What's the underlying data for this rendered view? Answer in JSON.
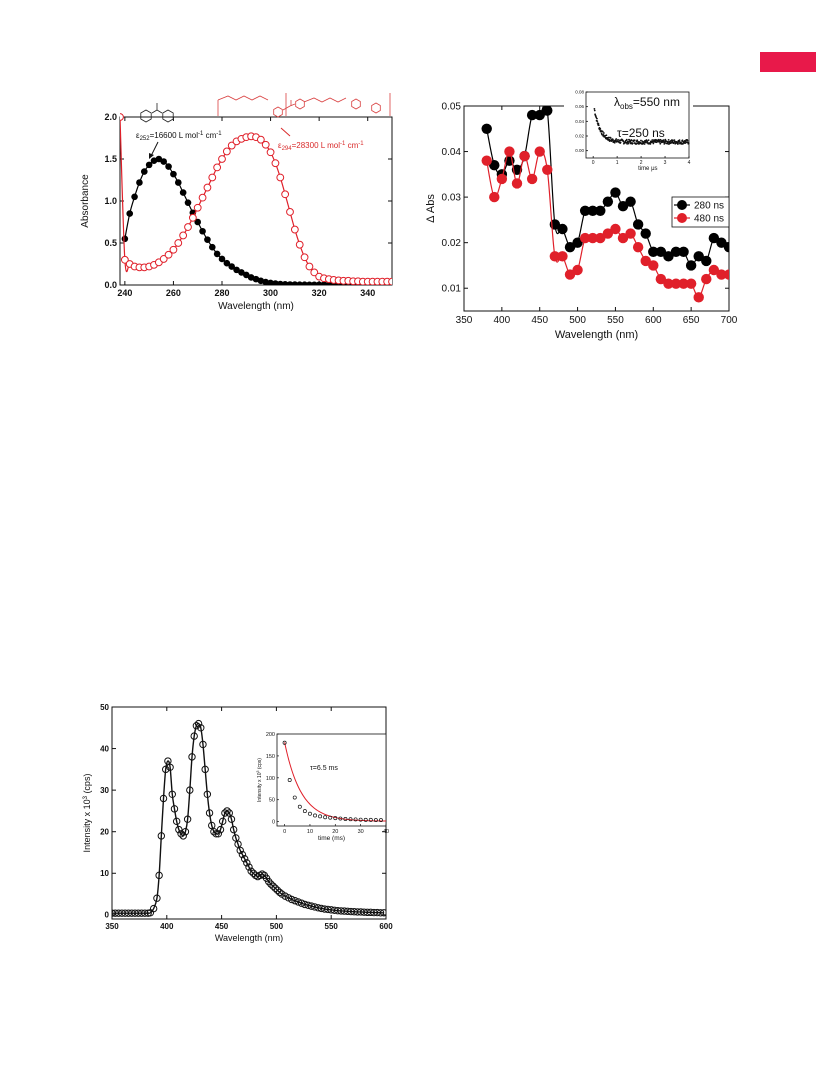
{
  "page": {
    "accent_color": "#e8194a"
  },
  "chart_data": [
    {
      "id": "abs",
      "type": "line",
      "xlabel": "Wavelength (nm)",
      "ylabel": "Absorbance",
      "xlim": [
        238,
        350
      ],
      "ylim": [
        0,
        2.0
      ],
      "xticks": [
        240,
        260,
        280,
        300,
        320,
        340
      ],
      "yticks": [
        0.0,
        0.5,
        1.0,
        1.5,
        2.0
      ],
      "xtick_labels": [
        "240",
        "260",
        "280",
        "300",
        "320",
        "340"
      ],
      "ytick_labels": [
        "0.0",
        "0.5",
        "1.0",
        "1.5",
        "2.0"
      ],
      "annotation_black": {
        "prefix": "ε",
        "sub": "252",
        "main": "=16600 L mol",
        "sup": "-1",
        "after": " cm",
        "sup2": "-1"
      },
      "annotation_red": {
        "prefix": "ε",
        "sub": "294",
        "main": "=28300 L mol",
        "sup": "-1",
        "after": " cm",
        "sup2": "-1"
      },
      "series": [
        {
          "color": "#000000",
          "marker": "filled",
          "x": [
            240,
            242,
            244,
            246,
            248,
            250,
            252,
            254,
            256,
            258,
            260,
            262,
            264,
            266,
            268,
            270,
            272,
            274,
            276,
            278,
            280,
            282,
            284,
            286,
            288,
            290,
            292,
            294,
            296,
            298,
            300,
            302,
            304,
            306,
            308,
            310,
            312,
            314,
            316,
            318,
            320,
            322,
            324,
            326,
            328,
            330,
            332,
            334,
            336,
            338,
            340,
            342,
            344,
            346,
            348,
            350
          ],
          "y": [
            0.55,
            0.85,
            1.05,
            1.22,
            1.35,
            1.43,
            1.48,
            1.5,
            1.47,
            1.41,
            1.32,
            1.22,
            1.1,
            0.98,
            0.86,
            0.75,
            0.64,
            0.54,
            0.45,
            0.37,
            0.31,
            0.26,
            0.22,
            0.18,
            0.15,
            0.12,
            0.09,
            0.07,
            0.05,
            0.035,
            0.025,
            0.018,
            0.012,
            0.008,
            0.006,
            0.005,
            0.004,
            0.004,
            0.003,
            0.003,
            0.003,
            0.003,
            0.003,
            0.003,
            0.003,
            0.003,
            0.003,
            0.003,
            0.003,
            0.003,
            0.003,
            0.003,
            0.003,
            0.003,
            0.003,
            0.003
          ]
        },
        {
          "color": "#e0202a",
          "marker": "open",
          "x": [
            238,
            240,
            242,
            244,
            246,
            248,
            250,
            252,
            254,
            256,
            258,
            260,
            262,
            264,
            266,
            268,
            270,
            272,
            274,
            276,
            278,
            280,
            282,
            284,
            286,
            288,
            290,
            292,
            294,
            296,
            298,
            300,
            302,
            304,
            306,
            308,
            310,
            312,
            314,
            316,
            318,
            320,
            322,
            324,
            326,
            328,
            330,
            332,
            334,
            336,
            338,
            340,
            342,
            344,
            346,
            348,
            350
          ],
          "y": [
            2.0,
            0.3,
            0.25,
            0.22,
            0.21,
            0.21,
            0.22,
            0.24,
            0.27,
            0.31,
            0.36,
            0.42,
            0.5,
            0.59,
            0.69,
            0.8,
            0.92,
            1.04,
            1.16,
            1.28,
            1.4,
            1.5,
            1.59,
            1.66,
            1.71,
            1.74,
            1.76,
            1.77,
            1.76,
            1.73,
            1.67,
            1.58,
            1.45,
            1.28,
            1.08,
            0.87,
            0.66,
            0.48,
            0.33,
            0.22,
            0.15,
            0.1,
            0.08,
            0.07,
            0.06,
            0.055,
            0.05,
            0.05,
            0.045,
            0.045,
            0.04,
            0.04,
            0.04,
            0.04,
            0.04,
            0.04,
            0.04
          ]
        }
      ]
    },
    {
      "id": "ta",
      "type": "line",
      "xlabel": "Wavelength (nm)",
      "ylabel": "Δ Abs",
      "xlim": [
        350,
        700
      ],
      "ylim": [
        0.005,
        0.05
      ],
      "xticks": [
        350,
        400,
        450,
        500,
        550,
        600,
        650,
        700
      ],
      "yticks": [
        0.01,
        0.02,
        0.03,
        0.04,
        0.05
      ],
      "xtick_labels": [
        "350",
        "400",
        "450",
        "500",
        "550",
        "600",
        "650",
        "700"
      ],
      "ytick_labels": [
        "0.01",
        "0.02",
        "0.03",
        "0.04",
        "0.05"
      ],
      "legend_position": "right",
      "series": [
        {
          "name": "280 ns",
          "color": "#000000",
          "x": [
            380,
            390,
            400,
            410,
            420,
            430,
            440,
            450,
            460,
            470,
            480,
            490,
            500,
            510,
            520,
            530,
            540,
            550,
            560,
            570,
            580,
            590,
            600,
            610,
            620,
            630,
            640,
            650,
            660,
            670,
            680,
            690,
            700
          ],
          "y": [
            0.045,
            0.037,
            0.035,
            0.038,
            0.036,
            0.039,
            0.048,
            0.048,
            0.049,
            0.024,
            0.023,
            0.019,
            0.02,
            0.027,
            0.027,
            0.027,
            0.029,
            0.031,
            0.028,
            0.029,
            0.024,
            0.022,
            0.018,
            0.018,
            0.017,
            0.018,
            0.018,
            0.015,
            0.017,
            0.016,
            0.021,
            0.02,
            0.019
          ]
        },
        {
          "name": "480 ns",
          "color": "#e0202a",
          "x": [
            380,
            390,
            400,
            410,
            420,
            430,
            440,
            450,
            460,
            470,
            480,
            490,
            500,
            510,
            520,
            530,
            540,
            550,
            560,
            570,
            580,
            590,
            600,
            610,
            620,
            630,
            640,
            650,
            660,
            670,
            680,
            690,
            700
          ],
          "y": [
            0.038,
            0.03,
            0.034,
            0.04,
            0.033,
            0.039,
            0.034,
            0.04,
            0.036,
            0.017,
            0.017,
            0.013,
            0.014,
            0.021,
            0.021,
            0.021,
            0.022,
            0.023,
            0.021,
            0.022,
            0.019,
            0.016,
            0.015,
            0.012,
            0.011,
            0.011,
            0.011,
            0.011,
            0.008,
            0.012,
            0.014,
            0.013,
            0.013
          ]
        }
      ],
      "inset": {
        "annotation_lambda": {
          "prefix": "λ",
          "sub": "obs",
          "main": "=550 nm"
        },
        "annotation_tau": "τ=250 ns",
        "xlabel": "time μs",
        "xlim": [
          -0.3,
          4
        ],
        "ylim": [
          -0.01,
          0.08
        ],
        "xticks": [
          0,
          1,
          2,
          3,
          4
        ],
        "yticks": [
          0.0,
          0.02,
          0.04,
          0.06,
          0.08
        ],
        "xtick_labels": [
          "0",
          "1",
          "2",
          "3",
          "4"
        ],
        "ytick_labels": [
          "0.00",
          "0.02",
          "0.04",
          "0.06",
          "0.08"
        ],
        "decay": {
          "amplitude": 0.055,
          "tau": 0.25,
          "offset": 0.012,
          "t_start": 0.05
        }
      }
    },
    {
      "id": "phos",
      "type": "line",
      "xlabel": "Wavelength (nm)",
      "ylabel": "Intensity x 10",
      "ylabel_sup": "3",
      "ylabel_after": " (cps)",
      "xlim": [
        350,
        600
      ],
      "ylim": [
        -1,
        50
      ],
      "xticks": [
        350,
        400,
        450,
        500,
        550,
        600
      ],
      "yticks": [
        0,
        10,
        20,
        30,
        40,
        50
      ],
      "xtick_labels": [
        "350",
        "400",
        "450",
        "500",
        "550",
        "600"
      ],
      "ytick_labels": [
        "0",
        "10",
        "20",
        "30",
        "40",
        "50"
      ],
      "series": [
        {
          "color": "#000000",
          "marker": "open",
          "x": [
            385,
            388,
            391,
            393,
            395,
            397,
            399,
            401,
            403,
            405,
            407,
            409,
            411,
            413,
            415,
            417,
            419,
            421,
            423,
            425,
            427,
            429,
            431,
            433,
            435,
            437,
            439,
            441,
            443,
            445,
            447,
            449,
            451,
            453,
            455,
            457,
            459,
            461,
            463,
            465,
            467,
            469,
            471,
            473,
            475,
            477,
            479,
            481,
            483,
            485,
            487,
            489,
            491,
            493,
            495,
            497,
            499,
            501,
            503,
            505,
            508,
            511,
            514,
            517,
            520,
            523,
            526,
            529,
            532,
            535,
            538,
            541,
            544,
            547,
            550,
            553,
            556,
            559,
            562,
            565,
            568,
            571,
            574,
            577,
            580,
            583,
            586,
            589,
            592,
            595,
            598
          ],
          "y": [
            0.5,
            1.5,
            4.0,
            9.5,
            19.0,
            28.0,
            35.0,
            37.0,
            35.5,
            29.0,
            25.5,
            22.5,
            20.5,
            19.5,
            19.0,
            20.0,
            23.0,
            30.0,
            38.0,
            43.0,
            45.5,
            46.0,
            45.0,
            41.0,
            35.0,
            29.0,
            24.5,
            21.5,
            20.0,
            19.5,
            19.5,
            20.5,
            22.5,
            24.5,
            25.0,
            24.5,
            23.0,
            20.5,
            18.5,
            17.0,
            15.5,
            14.5,
            13.5,
            12.5,
            11.5,
            10.5,
            10.0,
            9.5,
            9.2,
            9.5,
            9.8,
            9.5,
            8.8,
            8.0,
            7.4,
            6.9,
            6.4,
            5.9,
            5.4,
            5.0,
            4.5,
            4.1,
            3.7,
            3.4,
            3.1,
            2.8,
            2.5,
            2.3,
            2.1,
            1.9,
            1.7,
            1.55,
            1.4,
            1.3,
            1.2,
            1.1,
            1.0,
            0.95,
            0.9,
            0.85,
            0.8,
            0.75,
            0.7,
            0.7,
            0.65,
            0.6,
            0.6,
            0.55,
            0.55,
            0.5,
            0.5
          ]
        }
      ],
      "inset": {
        "annotation_tau": "τ=6.5 ms",
        "xlabel": "time (ms)",
        "ylabel": "Intensity x 10",
        "ylabel_sup": "3",
        "ylabel_after": " (cps)",
        "xlim": [
          -3,
          40
        ],
        "ylim": [
          -10,
          200
        ],
        "xticks": [
          0,
          10,
          20,
          30,
          40
        ],
        "yticks": [
          0,
          50,
          100,
          150,
          200
        ],
        "xtick_labels": [
          "0",
          "10",
          "20",
          "30",
          "40"
        ],
        "ytick_labels": [
          "0",
          "50",
          "100",
          "150",
          "200"
        ],
        "decay": {
          "amplitude": 180,
          "tau": 6.5,
          "offset": 1
        },
        "points_x": [
          0,
          2,
          4,
          6,
          8,
          10,
          12,
          14,
          16,
          18,
          20,
          22,
          24,
          26,
          28,
          30,
          32,
          34,
          36,
          38
        ],
        "points_y": [
          180,
          95,
          55,
          34,
          24,
          18,
          14,
          12,
          10,
          9,
          8,
          7,
          6,
          5.5,
          5,
          4.5,
          4,
          4,
          3.5,
          3.5
        ]
      }
    }
  ]
}
